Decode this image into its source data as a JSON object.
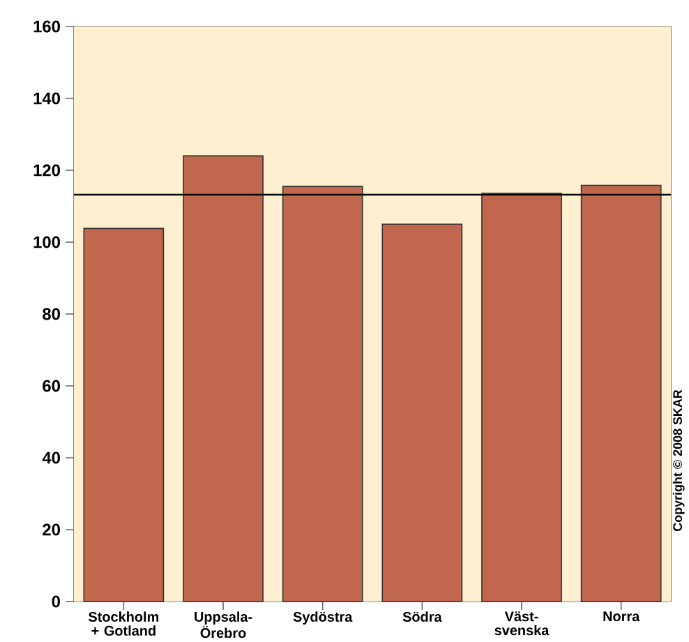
{
  "chart_data": {
    "type": "bar",
    "categories": [
      "Stockholm + Gotland",
      "Uppsala-Örebro",
      "Sydöstra",
      "Södra",
      "Väst-svenska",
      "Norra"
    ],
    "values": [
      103.8,
      124,
      115.5,
      105,
      113.6,
      115.8
    ],
    "color": "#c0674e",
    "ylim": [
      0,
      160
    ],
    "yticks": [
      0,
      20,
      40,
      60,
      80,
      100,
      120,
      140,
      160
    ],
    "bands": [
      {
        "axis": "y",
        "from": 0,
        "to": 160,
        "color": "#fdefd0"
      }
    ],
    "ref_lines": [
      {
        "axis": "y",
        "value": 113.2,
        "color": "#000000"
      }
    ],
    "annotations": [
      "Copyright © 2008 SKAR"
    ]
  }
}
